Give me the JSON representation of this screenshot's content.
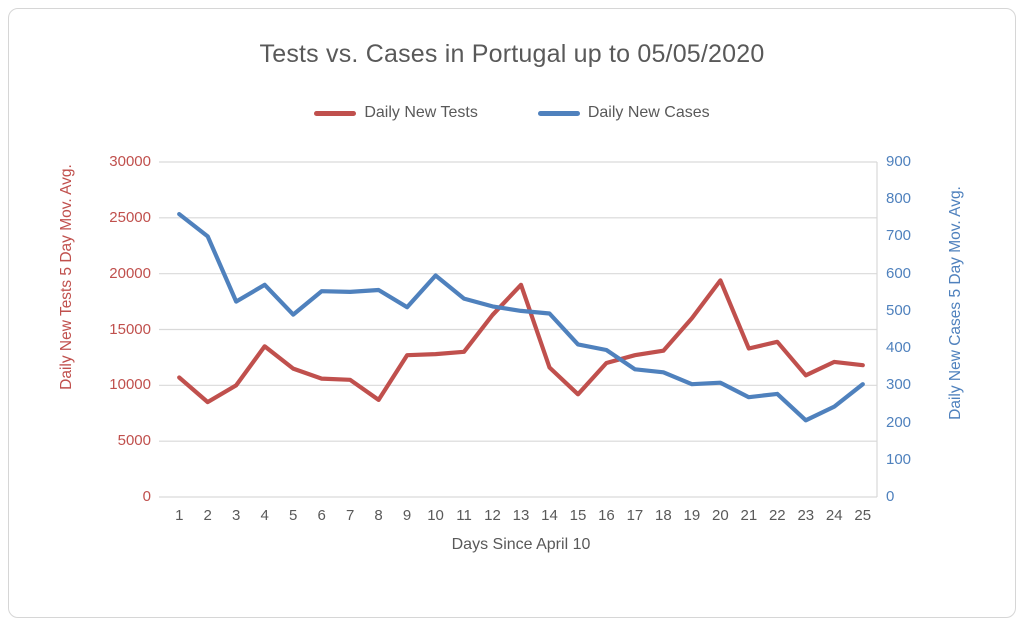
{
  "chart_data": {
    "type": "line",
    "title": "Tests vs. Cases in Portugal up to 05/05/2020",
    "xlabel": "Days Since April 10",
    "categories": [
      1,
      2,
      3,
      4,
      5,
      6,
      7,
      8,
      9,
      10,
      11,
      12,
      13,
      14,
      15,
      16,
      17,
      18,
      19,
      20,
      21,
      22,
      23,
      24,
      25
    ],
    "series": [
      {
        "name": "Daily New Tests",
        "axis": "left",
        "color": "#c0504d",
        "values": [
          10700,
          8500,
          10000,
          13500,
          11500,
          10600,
          10500,
          8700,
          12700,
          12800,
          13000,
          16300,
          19000,
          11600,
          9200,
          12000,
          12700,
          13100,
          16000,
          19400,
          13300,
          13900,
          10900,
          12100,
          11800
        ]
      },
      {
        "name": "Daily New Cases",
        "axis": "right",
        "color": "#4f81bd",
        "values": [
          760,
          700,
          525,
          570,
          490,
          553,
          551,
          556,
          510,
          595,
          533,
          512,
          500,
          493,
          410,
          395,
          343,
          335,
          303,
          307,
          268,
          277,
          206,
          243,
          303
        ]
      }
    ],
    "left_axis": {
      "title": "Daily New Tests 5 Day Mov. Avg.",
      "min": 0,
      "max": 30000,
      "ticks": [
        0,
        5000,
        10000,
        15000,
        20000,
        25000,
        30000
      ]
    },
    "right_axis": {
      "title": "Daily New Cases 5 Day Mov. Avg.",
      "min": 0,
      "max": 900,
      "ticks": [
        0,
        100,
        200,
        300,
        400,
        500,
        600,
        700,
        800,
        900
      ]
    },
    "grid": true,
    "legend_position": "top"
  },
  "colors": {
    "grid": "#d9d9d9",
    "text": "#595959",
    "frame_border": "#d6d6d6"
  }
}
